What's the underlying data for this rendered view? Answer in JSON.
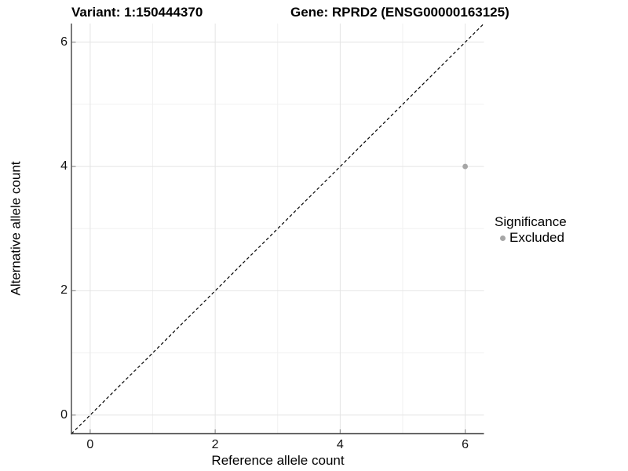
{
  "titles": {
    "variant": "Variant: 1:150444370",
    "gene": "Gene: RPRD2 (ENSG00000163125)"
  },
  "chart_data": {
    "type": "scatter",
    "xlabel": "Reference allele count",
    "ylabel": "Alternative allele count",
    "xlim": [
      -0.3,
      6.3
    ],
    "ylim": [
      -0.3,
      6.3
    ],
    "x_breaks": [
      0,
      2,
      4,
      6
    ],
    "y_breaks": [
      0,
      2,
      4,
      6
    ],
    "x_minor_breaks": [
      1,
      3,
      5
    ],
    "y_minor_breaks": [
      1,
      3,
      5
    ],
    "grid": "on",
    "identity_line": {
      "style": "dashed",
      "from": [
        -0.3,
        -0.3
      ],
      "to": [
        6.3,
        6.3
      ],
      "color": "#000000"
    },
    "series": [
      {
        "name": "Excluded",
        "points": [
          {
            "x": 6,
            "y": 4
          }
        ],
        "color": "#a6a6a6"
      }
    ],
    "legend": {
      "title": "Significance",
      "position": "right",
      "items": [
        {
          "label": "Excluded",
          "color": "#a6a6a6",
          "marker": "circle"
        }
      ]
    },
    "colors": {
      "grid_major": "#e4e4e4",
      "grid_minor": "#f1f1f1",
      "axis_line": "#404040",
      "tick_mark": "#8f8f8f",
      "point": "#a6a6a6",
      "dashed_line": "#000000"
    }
  }
}
